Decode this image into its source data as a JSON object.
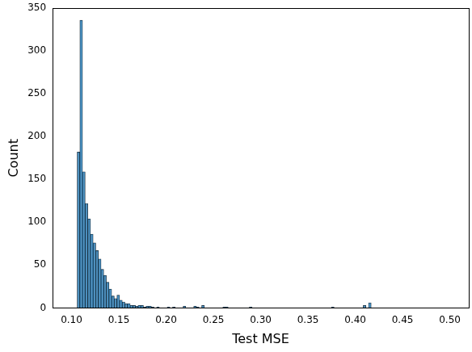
{
  "chart_data": {
    "type": "histogram",
    "x_label": "Test MSE",
    "y_label": "Count",
    "color": "#1f77b4",
    "grid": false,
    "bins": [
      0.106,
      0.1088,
      0.1116,
      0.1144,
      0.1172,
      0.12,
      0.1228,
      0.1256,
      0.1284,
      0.1312,
      0.134,
      0.1368,
      0.1396,
      0.1424,
      0.1452,
      0.148,
      0.1508,
      0.1536,
      0.1564,
      0.1592,
      0.162,
      0.1648,
      0.1676,
      0.1704,
      0.1732,
      0.176,
      0.1788,
      0.1816,
      0.1844,
      0.1872,
      0.19,
      0.1928,
      0.1956,
      0.1984,
      0.2012,
      0.204,
      0.2068,
      0.2096,
      0.2124,
      0.2152,
      0.218,
      0.2208,
      0.2236,
      0.2264,
      0.2292,
      0.232,
      0.2348,
      0.2376,
      0.2404,
      0.2432,
      0.246,
      0.2488,
      0.2516,
      0.2544,
      0.2572,
      0.26,
      0.2628,
      0.2656,
      0.2684,
      0.2712,
      0.274,
      0.2768,
      0.2796,
      0.2824,
      0.2852,
      0.288,
      0.2908,
      0.2936,
      0.2964,
      0.2992,
      0.302,
      0.3048,
      0.3076,
      0.3104,
      0.3132,
      0.316,
      0.3188,
      0.3216,
      0.3244,
      0.3272,
      0.33,
      0.3328,
      0.3356,
      0.3384,
      0.3412,
      0.344,
      0.3468,
      0.3496,
      0.3524,
      0.3552,
      0.358,
      0.3608,
      0.3636,
      0.3664,
      0.3692,
      0.372,
      0.3748,
      0.3776,
      0.3804,
      0.3832,
      0.386,
      0.3888,
      0.3916,
      0.3944,
      0.3972,
      0.4,
      0.4028,
      0.4056,
      0.4084,
      0.4112,
      0.414,
      0.4168,
      0.4196
    ],
    "values": [
      182,
      336,
      159,
      122,
      104,
      86,
      76,
      67,
      57,
      45,
      38,
      30,
      22,
      14,
      11,
      15,
      9,
      7,
      5,
      5,
      3,
      3,
      2,
      3,
      3,
      1,
      2,
      2,
      1,
      0,
      1,
      0,
      0,
      0,
      1,
      0,
      1,
      0,
      0,
      0,
      2,
      0,
      0,
      0,
      2,
      1,
      0,
      3,
      0,
      0,
      0,
      0,
      0,
      0,
      0,
      1,
      1,
      0,
      0,
      0,
      0,
      0,
      0,
      0,
      0,
      1,
      0,
      0,
      0,
      0,
      0,
      0,
      0,
      0,
      0,
      0,
      0,
      0,
      0,
      0,
      0,
      0,
      0,
      0,
      0,
      0,
      0,
      0,
      0,
      0,
      0,
      0,
      0,
      0,
      0,
      0,
      1,
      0,
      0,
      0,
      0,
      0,
      0,
      0,
      0,
      0,
      0,
      0,
      3,
      0,
      6,
      0
    ],
    "xlim": [
      0.08,
      0.52
    ],
    "xticks": [
      {
        "value": 0.1,
        "label": "0.10"
      },
      {
        "value": 0.15,
        "label": "0.15"
      },
      {
        "value": 0.2,
        "label": "0.20"
      },
      {
        "value": 0.25,
        "label": "0.25"
      },
      {
        "value": 0.3,
        "label": "0.30"
      },
      {
        "value": 0.35,
        "label": "0.35"
      },
      {
        "value": 0.4,
        "label": "0.40"
      },
      {
        "value": 0.45,
        "label": "0.45"
      },
      {
        "value": 0.5,
        "label": "0.50"
      }
    ],
    "ylim": [
      0,
      350
    ],
    "yticks": [
      0,
      50,
      100,
      150,
      200,
      250,
      300,
      350
    ]
  }
}
